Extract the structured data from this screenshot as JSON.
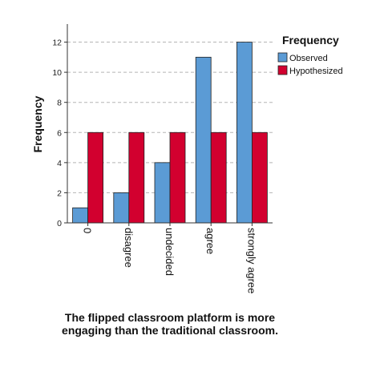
{
  "chart_data": {
    "type": "bar",
    "categories": [
      "0",
      "disagree",
      "undecided",
      "agree",
      "strongly agree"
    ],
    "series": [
      {
        "name": "Observed",
        "values": [
          1,
          2,
          4,
          11,
          12
        ],
        "color": "#5b9bd5"
      },
      {
        "name": "Hypothesized",
        "values": [
          6,
          6,
          6,
          6,
          6
        ],
        "color": "#d2002f"
      }
    ],
    "ylabel": "Frequency",
    "xlabel": "The flipped classroom platform is more engaging than the traditional classroom.",
    "ylim": [
      0,
      13.2
    ],
    "yticks": [
      0,
      2,
      4,
      6,
      8,
      10,
      12
    ],
    "grid": true,
    "legend": {
      "title": "Frequency",
      "position": "top-right"
    }
  }
}
